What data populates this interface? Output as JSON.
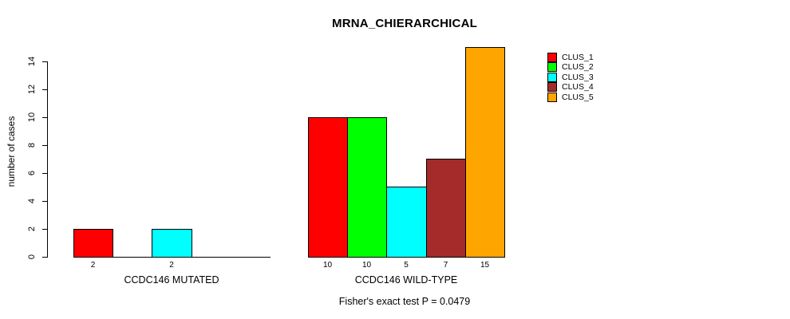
{
  "title": "MRNA_CHIERARCHICAL",
  "legend": {
    "items": [
      {
        "label": "CLUS_1",
        "color": "#FF0000"
      },
      {
        "label": "CLUS_2",
        "color": "#00FF00"
      },
      {
        "label": "CLUS_3",
        "color": "#00FFFF"
      },
      {
        "label": "CLUS_4",
        "color": "#A52A2A"
      },
      {
        "label": "CLUS_5",
        "color": "#FFA500"
      }
    ]
  },
  "chart_data": {
    "type": "bar",
    "title": "MRNA_CHIERARCHICAL",
    "ylabel": "number of cases",
    "ylim": [
      0,
      15
    ],
    "yticks": [
      0,
      2,
      4,
      6,
      8,
      10,
      12,
      14
    ],
    "grid": false,
    "legend_position": "top-right",
    "series_names": [
      "CLUS_1",
      "CLUS_2",
      "CLUS_3",
      "CLUS_4",
      "CLUS_5"
    ],
    "series_colors": [
      "#FF0000",
      "#00FF00",
      "#00FFFF",
      "#A52A2A",
      "#FFA500"
    ],
    "groups": [
      {
        "label": "CCDC146 MUTATED",
        "values": [
          2,
          0,
          2,
          0,
          0
        ]
      },
      {
        "label": "CCDC146 WILD-TYPE",
        "values": [
          10,
          10,
          5,
          7,
          15
        ]
      }
    ],
    "annotation": "Fisher's exact test P = 0.0479",
    "axis_color": "#000000"
  }
}
